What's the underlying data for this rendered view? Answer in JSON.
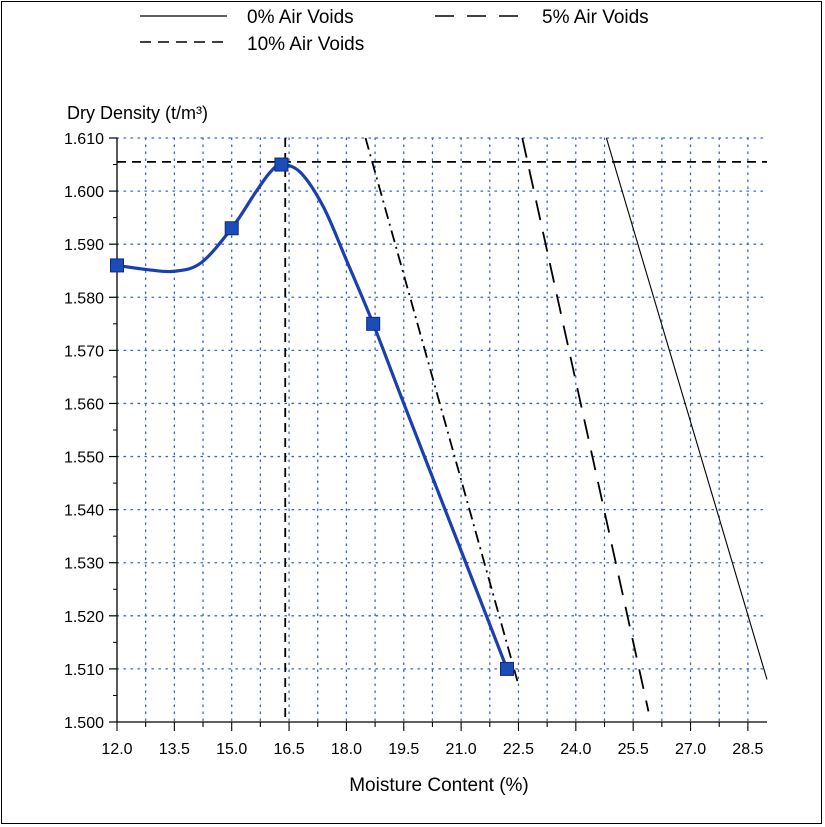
{
  "chart_data": {
    "type": "line",
    "ylabel": "Dry Density (t/m³)",
    "xlabel": "Moisture Content (%)",
    "xlim": [
      12.0,
      29.0
    ],
    "ylim": [
      1.5,
      1.61
    ],
    "x_ticks": [
      "12.0",
      "13.5",
      "15.0",
      "16.5",
      "18.0",
      "19.5",
      "21.0",
      "22.5",
      "24.0",
      "25.5",
      "27.0",
      "28.5"
    ],
    "x_tick_values": [
      12.0,
      13.5,
      15.0,
      16.5,
      18.0,
      19.5,
      21.0,
      22.5,
      24.0,
      25.5,
      27.0,
      28.5
    ],
    "y_ticks": [
      "1.500",
      "1.510",
      "1.520",
      "1.530",
      "1.540",
      "1.550",
      "1.560",
      "1.570",
      "1.580",
      "1.590",
      "1.600",
      "1.610"
    ],
    "y_tick_values": [
      1.5,
      1.51,
      1.52,
      1.53,
      1.54,
      1.55,
      1.56,
      1.57,
      1.58,
      1.59,
      1.6,
      1.61
    ],
    "grid": true,
    "legend_position": "top",
    "legend": [
      {
        "label": "0% Air Voids",
        "style": "solid"
      },
      {
        "label": "5% Air Voids",
        "style": "dashed"
      },
      {
        "label": "10% Air Voids",
        "style": "dash-dot"
      }
    ],
    "series": [
      {
        "style": "compaction-curve",
        "color": "#1a3fb0",
        "marker_color": "#1a4db8",
        "points": [
          {
            "x": 12.0,
            "y": 1.586
          },
          {
            "x": 15.0,
            "y": 1.593
          },
          {
            "x": 16.3,
            "y": 1.605
          },
          {
            "x": 18.7,
            "y": 1.575
          },
          {
            "x": 22.2,
            "y": 1.51
          }
        ],
        "curve": [
          {
            "x": 12.0,
            "y": 1.586
          },
          {
            "x": 12.8,
            "y": 1.5852
          },
          {
            "x": 13.5,
            "y": 1.5849
          },
          {
            "x": 14.2,
            "y": 1.5865
          },
          {
            "x": 15.0,
            "y": 1.593
          },
          {
            "x": 15.6,
            "y": 1.5995
          },
          {
            "x": 16.0,
            "y": 1.6035
          },
          {
            "x": 16.3,
            "y": 1.605
          },
          {
            "x": 16.8,
            "y": 1.6035
          },
          {
            "x": 17.4,
            "y": 1.597
          },
          {
            "x": 18.0,
            "y": 1.587
          },
          {
            "x": 18.7,
            "y": 1.575
          },
          {
            "x": 19.5,
            "y": 1.56
          },
          {
            "x": 20.5,
            "y": 1.5415
          },
          {
            "x": 21.5,
            "y": 1.523
          },
          {
            "x": 22.2,
            "y": 1.51
          }
        ]
      },
      {
        "name": "0% Air Voids",
        "style": "solid",
        "color": "#000000",
        "points": [
          {
            "x": 24.8,
            "y": 1.61
          },
          {
            "x": 29.0,
            "y": 1.508
          }
        ]
      },
      {
        "name": "5% Air Voids",
        "style": "dashed",
        "color": "#000000",
        "points": [
          {
            "x": 22.6,
            "y": 1.61
          },
          {
            "x": 25.9,
            "y": 1.502
          }
        ]
      },
      {
        "name": "10% Air Voids",
        "style": "dash-dot",
        "color": "#000000",
        "points": [
          {
            "x": 18.5,
            "y": 1.61
          },
          {
            "x": 22.5,
            "y": 1.507
          }
        ]
      }
    ],
    "reference_lines": {
      "max_dry_density": 1.6055,
      "optimum_moisture": 16.4
    }
  }
}
